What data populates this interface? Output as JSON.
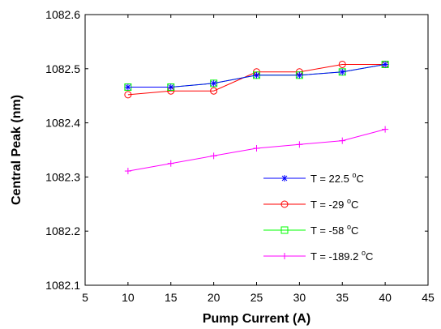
{
  "chart_data": {
    "type": "line",
    "xlabel": "Pump Current (A)",
    "ylabel": "Central Peak (nm)",
    "xlim": [
      5,
      45
    ],
    "ylim": [
      1082.1,
      1082.6
    ],
    "xticks": [
      5,
      10,
      15,
      20,
      25,
      30,
      35,
      40,
      45
    ],
    "yticks": [
      1082.1,
      1082.2,
      1082.3,
      1082.4,
      1082.5,
      1082.6
    ],
    "xtick_labels": [
      "5",
      "10",
      "15",
      "20",
      "25",
      "30",
      "35",
      "40",
      "45"
    ],
    "ytick_labels": [
      "1082.1",
      "1082.2",
      "1082.3",
      "1082.4",
      "1082.5",
      "1082.6"
    ],
    "grid": false,
    "legend_position": "center-right",
    "x": [
      10,
      15,
      20,
      25,
      30,
      35,
      40
    ],
    "series": [
      {
        "name": "T = 22.5 °C",
        "label_main": "T = 22.5 ",
        "label_sup": "o",
        "label_unit": "C",
        "marker": "asterisk",
        "color": "#0000ff",
        "values": [
          1082.466,
          1082.466,
          1082.473,
          1082.488,
          1082.488,
          1082.494,
          1082.508
        ]
      },
      {
        "name": "T = -29 °C",
        "label_main": "T = -29 ",
        "label_sup": "o",
        "label_unit": "C",
        "marker": "circle",
        "color": "#ff0000",
        "values": [
          1082.452,
          1082.459,
          1082.459,
          1082.494,
          1082.494,
          1082.508,
          1082.508
        ]
      },
      {
        "name": "T = -58 °C",
        "label_main": "T = -58 ",
        "label_sup": "o",
        "label_unit": "C",
        "marker": "square",
        "color": "#00ff00",
        "values": [
          1082.466,
          1082.466,
          1082.473,
          1082.488,
          1082.488,
          1082.494,
          1082.508
        ]
      },
      {
        "name": "T = -189.2 °C",
        "label_main": "T = -189.2 ",
        "label_sup": "o",
        "label_unit": "C",
        "marker": "plus",
        "color": "#ff00ff",
        "values": [
          1082.311,
          1082.325,
          1082.339,
          1082.353,
          1082.36,
          1082.367,
          1082.388
        ]
      }
    ]
  }
}
